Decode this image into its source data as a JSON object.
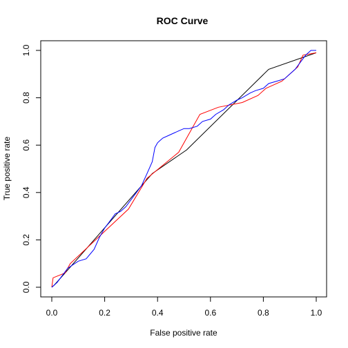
{
  "chart_data": {
    "type": "line",
    "title": "ROC Curve",
    "xlabel": "False positive rate",
    "ylabel": "True positive rate",
    "xlim": [
      0,
      1
    ],
    "ylim": [
      0,
      1
    ],
    "xticks": [
      "0.0",
      "0.2",
      "0.4",
      "0.6",
      "0.8",
      "1.0"
    ],
    "yticks": [
      "0.0",
      "0.2",
      "0.4",
      "0.6",
      "0.8",
      "1.0"
    ],
    "grid": false,
    "legend": "none",
    "series": [
      {
        "color": "#000000",
        "x": [
          0.0,
          0.01,
          0.05,
          0.38,
          0.51,
          0.82,
          1.0
        ],
        "y": [
          0.0,
          0.01,
          0.06,
          0.48,
          0.58,
          0.92,
          0.99
        ]
      },
      {
        "color": "#ff0000",
        "x": [
          0.0,
          0.005,
          0.05,
          0.07,
          0.29,
          0.36,
          0.48,
          0.56,
          0.63,
          0.72,
          0.78,
          0.81,
          0.87,
          0.93,
          0.95,
          1.0
        ],
        "y": [
          0.0,
          0.04,
          0.06,
          0.1,
          0.33,
          0.46,
          0.57,
          0.73,
          0.76,
          0.78,
          0.81,
          0.84,
          0.87,
          0.93,
          0.98,
          0.99
        ]
      },
      {
        "color": "#0000ff",
        "x": [
          0.0,
          0.02,
          0.04,
          0.06,
          0.1,
          0.13,
          0.16,
          0.18,
          0.2,
          0.22,
          0.24,
          0.26,
          0.28,
          0.3,
          0.32,
          0.34,
          0.36,
          0.38,
          0.39,
          0.4,
          0.41,
          0.42,
          0.44,
          0.46,
          0.48,
          0.5,
          0.52,
          0.55,
          0.57,
          0.6,
          0.62,
          0.65,
          0.67,
          0.7,
          0.72,
          0.75,
          0.77,
          0.8,
          0.82,
          0.85,
          0.88,
          0.9,
          0.92,
          0.94,
          0.96,
          0.98,
          1.0
        ],
        "y": [
          0.0,
          0.02,
          0.05,
          0.08,
          0.11,
          0.12,
          0.16,
          0.21,
          0.25,
          0.28,
          0.31,
          0.32,
          0.34,
          0.37,
          0.4,
          0.43,
          0.48,
          0.53,
          0.59,
          0.61,
          0.62,
          0.63,
          0.64,
          0.65,
          0.66,
          0.67,
          0.67,
          0.68,
          0.7,
          0.71,
          0.73,
          0.75,
          0.77,
          0.79,
          0.8,
          0.82,
          0.83,
          0.84,
          0.86,
          0.87,
          0.88,
          0.9,
          0.92,
          0.95,
          0.98,
          1.0,
          1.0
        ]
      }
    ]
  }
}
